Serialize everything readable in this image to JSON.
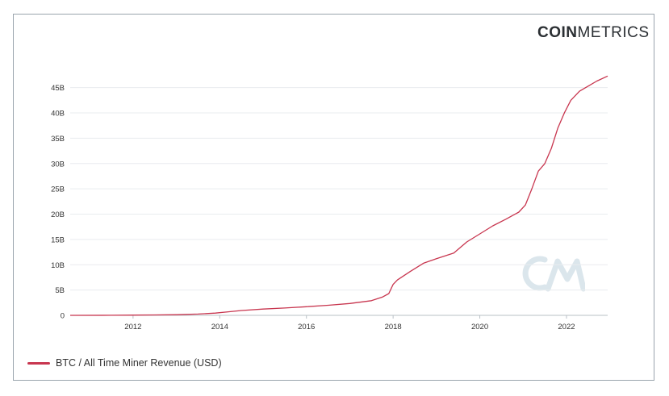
{
  "brand": {
    "bold": "COIN",
    "light": "METRICS",
    "watermark_icon": "cm-watermark-icon"
  },
  "colors": {
    "series": "#c8364f",
    "grid": "#e9ecef",
    "axis": "#b9c0c6",
    "text": "#333333"
  },
  "chart_data": {
    "type": "line",
    "title": "",
    "xlabel": "",
    "ylabel": "",
    "xlim": [
      2010.55,
      2022.95
    ],
    "ylim": [
      0,
      47500000000
    ],
    "grid": true,
    "legend_position": "bottom-left",
    "x_ticks": [
      2012,
      2014,
      2016,
      2018,
      2020,
      2022
    ],
    "x_tick_labels": [
      "2012",
      "2014",
      "2016",
      "2018",
      "2020",
      "2022"
    ],
    "y_ticks": [
      0,
      5000000000,
      10000000000,
      15000000000,
      20000000000,
      25000000000,
      30000000000,
      35000000000,
      40000000000,
      45000000000
    ],
    "y_tick_labels": [
      "0",
      "5B",
      "10B",
      "15B",
      "20B",
      "25B",
      "30B",
      "35B",
      "40B",
      "45B"
    ],
    "series": [
      {
        "name": "BTC / All Time Miner Revenue (USD)",
        "x": [
          2010.55,
          2011.5,
          2012.0,
          2012.5,
          2013.0,
          2013.5,
          2013.9,
          2014.2,
          2014.5,
          2015.0,
          2015.5,
          2016.0,
          2016.5,
          2017.0,
          2017.5,
          2017.75,
          2017.9,
          2018.0,
          2018.1,
          2018.4,
          2018.7,
          2019.0,
          2019.4,
          2019.7,
          2020.0,
          2020.3,
          2020.6,
          2020.9,
          2021.05,
          2021.2,
          2021.35,
          2021.5,
          2021.65,
          2021.8,
          2021.95,
          2022.1,
          2022.3,
          2022.5,
          2022.7,
          2022.95
        ],
        "y": [
          0,
          20000000,
          50000000,
          80000000,
          120000000,
          250000000,
          450000000,
          700000000,
          950000000,
          1250000000,
          1450000000,
          1700000000,
          2000000000,
          2350000000,
          2900000000,
          3600000000,
          4300000000,
          6100000000,
          7000000000,
          8700000000,
          10300000000,
          11200000000,
          12300000000,
          14500000000,
          16100000000,
          17700000000,
          19000000000,
          20400000000,
          21800000000,
          25000000000,
          28500000000,
          30000000000,
          33000000000,
          37000000000,
          40000000000,
          42500000000,
          44300000000,
          45300000000,
          46300000000,
          47300000000
        ]
      }
    ]
  }
}
